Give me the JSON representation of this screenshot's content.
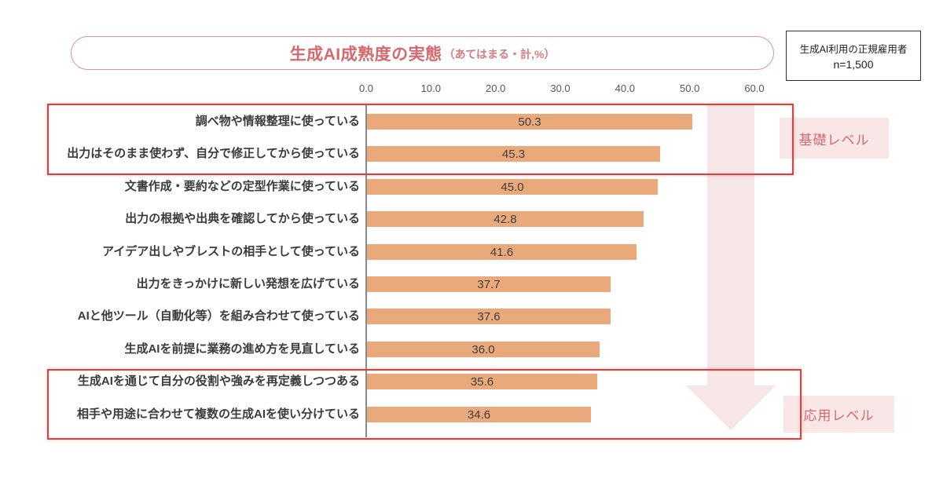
{
  "header": {
    "title": "生成AI成熟度の実態",
    "subtitle": "（あてはまる・計,%）",
    "sample_note_line1": "生成AI利用の正規雇用者",
    "sample_note_line2": "n=1,500"
  },
  "chart_data": {
    "type": "bar",
    "orientation": "horizontal",
    "title": "生成AI成熟度の実態（あてはまる・計,%）",
    "xlabel": "",
    "ylabel": "",
    "xlim": [
      0,
      60
    ],
    "x_ticks": [
      "0.0",
      "10.0",
      "20.0",
      "30.0",
      "40.0",
      "50.0",
      "60.0"
    ],
    "grid": false,
    "legend": false,
    "categories": [
      "調べ物や情報整理に使っている",
      "出力はそのまま使わず、自分で修正してから使っている",
      "文書作成・要約などの定型作業に使っている",
      "出力の根拠や出典を確認してから使っている",
      "アイデア出しやブレストの相手として使っている",
      "出力をきっかけに新しい発想を広げている",
      "AIと他ツール（自動化等）を組み合わせて使っている",
      "生成AIを前提に業務の進め方を見直している",
      "生成AIを通じて自分の役割や強みを再定義しつつある",
      "相手や用途に合わせて複数の生成AIを使い分けている"
    ],
    "values": [
      50.3,
      45.3,
      45.0,
      42.8,
      41.6,
      37.7,
      37.6,
      36.0,
      35.6,
      34.6
    ],
    "groups": [
      {
        "label": "基礎レベル",
        "rows": [
          0,
          1
        ]
      },
      {
        "label": "応用レベル",
        "rows": [
          8,
          9
        ]
      }
    ]
  },
  "annotations": {
    "basic_level": "基礎レベル",
    "applied_level": "応用レベル"
  },
  "colors": {
    "bar": "#e9a97b",
    "title_text": "#d5696d",
    "group_box_border": "#c44a48",
    "level_label_bg": "#f9e6e7",
    "arrow_fill": "#f0d2d4",
    "axis_line": "#8a8a8a"
  }
}
